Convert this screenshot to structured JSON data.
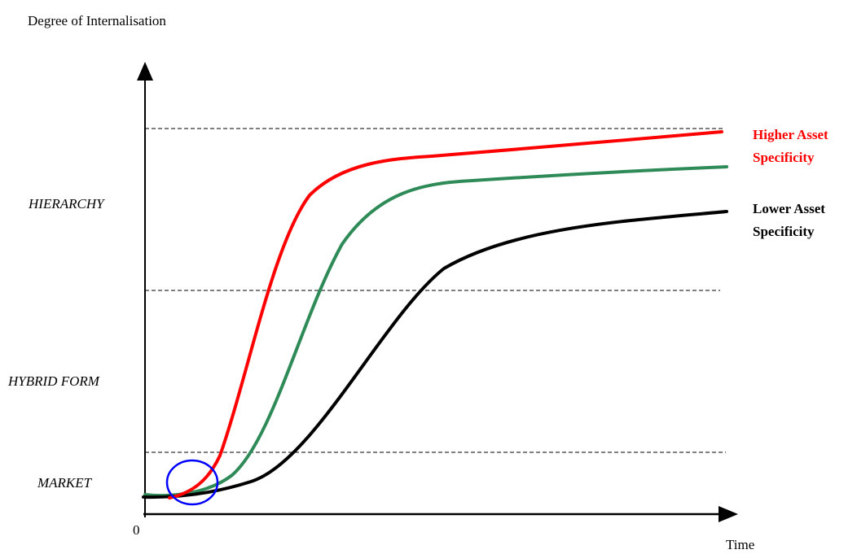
{
  "title": "Degree of Internalisation",
  "x_axis_label": "Time",
  "origin_label": "0",
  "levels": [
    {
      "key": "market",
      "label": "MARKET"
    },
    {
      "key": "hybrid",
      "label": "HYBRID FORM"
    },
    {
      "key": "hierarchy",
      "label": "HIERARCHY"
    }
  ],
  "curves": [
    {
      "key": "higher",
      "label_lines": [
        "Higher Asset",
        "Specificity"
      ],
      "color": "#ff0000"
    },
    {
      "key": "middle",
      "label_lines": [],
      "color": "#2e8b57"
    },
    {
      "key": "lower",
      "label_lines": [
        "Lower Asset",
        "Specificity"
      ],
      "color": "#000000"
    }
  ],
  "highlight_color": "#0000ff"
}
